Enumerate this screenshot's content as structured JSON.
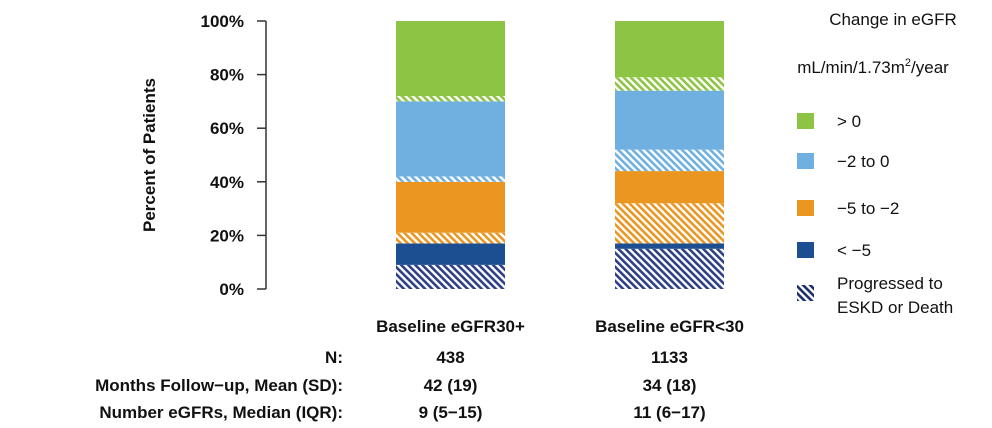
{
  "chart_data": {
    "type": "bar",
    "stacked": true,
    "ylabel": "Percent of Patients",
    "ylim": [
      0,
      100
    ],
    "yticks": [
      "0%",
      "20%",
      "40%",
      "60%",
      "80%",
      "100%"
    ],
    "categories": [
      "Baseline eGFR30+",
      "Baseline eGFR<30"
    ],
    "legend": {
      "title_line1": "Change in eGFR",
      "title_line2_pre": "mL/min/1.73m",
      "title_line2_sup": "2",
      "title_line2_post": "/year",
      "placement": "right",
      "entries": [
        {
          "label": "> 0",
          "color": "#8dc443",
          "pattern": false
        },
        {
          "label": "−2 to 0",
          "color": "#6fb0e1",
          "pattern": false
        },
        {
          "label": "−5 to −2",
          "color": "#eb9621",
          "pattern": false
        },
        {
          "label": "< −5",
          "color": "#1c4f91",
          "pattern": false
        },
        {
          "label_line1": "Progressed to",
          "label_line2": "ESKD or Death",
          "color": "#1c2f6b",
          "pattern": true
        }
      ]
    },
    "series": [
      {
        "segment": "< -5 progressed",
        "color": "#2e3f86",
        "hatched": true,
        "values": [
          9,
          15
        ]
      },
      {
        "segment": "< -5",
        "color": "#1c4f91",
        "hatched": false,
        "values": [
          8,
          2
        ]
      },
      {
        "segment": "-5 to -2 progressed",
        "color": "#eb9621",
        "hatched": true,
        "values": [
          4,
          15
        ]
      },
      {
        "segment": "-5 to -2",
        "color": "#eb9621",
        "hatched": false,
        "values": [
          19,
          12
        ]
      },
      {
        "segment": "-2 to 0 progressed",
        "color": "#6fb0e1",
        "hatched": true,
        "values": [
          2,
          8
        ]
      },
      {
        "segment": "-2 to 0",
        "color": "#6fb0e1",
        "hatched": false,
        "values": [
          28,
          22
        ]
      },
      {
        "segment": "> 0 progressed",
        "color": "#8dc443",
        "hatched": true,
        "values": [
          2,
          5
        ]
      },
      {
        "segment": "> 0",
        "color": "#8dc443",
        "hatched": false,
        "values": [
          28,
          21
        ]
      }
    ],
    "table": {
      "rows": [
        {
          "label": "N:",
          "values": [
            "438",
            "1133"
          ]
        },
        {
          "label": "Months Follow−up, Mean (SD):",
          "values": [
            "42 (19)",
            "34 (18)"
          ]
        },
        {
          "label": "Number eGFRs, Median (IQR):",
          "values": [
            "9 (5−15)",
            "11 (6−17)"
          ]
        }
      ]
    }
  }
}
